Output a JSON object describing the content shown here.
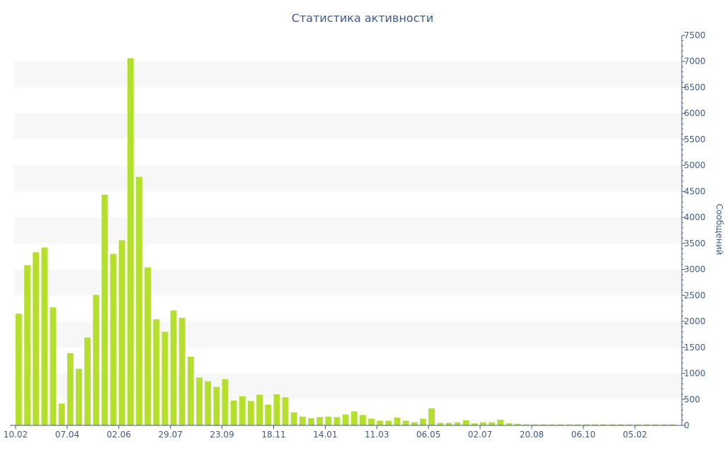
{
  "chart_data": {
    "type": "bar",
    "title": "Статистика активности",
    "xlabel": "",
    "ylabel": "Сообщений",
    "ylim": [
      0,
      7500
    ],
    "yticks": [
      0,
      500,
      1000,
      1500,
      2000,
      2500,
      3000,
      3500,
      4000,
      4500,
      5000,
      5500,
      6000,
      6500,
      7000,
      7500
    ],
    "xtick_labels": [
      {
        "index": 0,
        "label": "10.02"
      },
      {
        "index": 6,
        "label": "07.04"
      },
      {
        "index": 12,
        "label": "02.06"
      },
      {
        "index": 18,
        "label": "29.07"
      },
      {
        "index": 24,
        "label": "23.09"
      },
      {
        "index": 30,
        "label": "18.11"
      },
      {
        "index": 36,
        "label": "14.01"
      },
      {
        "index": 42,
        "label": "11.03"
      },
      {
        "index": 48,
        "label": "06.05"
      },
      {
        "index": 54,
        "label": "02.07"
      },
      {
        "index": 60,
        "label": "20.08"
      },
      {
        "index": 66,
        "label": "06.10"
      },
      {
        "index": 72,
        "label": "05.02"
      }
    ],
    "values": [
      2150,
      3080,
      3330,
      3420,
      2270,
      420,
      1390,
      1090,
      1690,
      2510,
      4440,
      3300,
      3560,
      7060,
      4780,
      3040,
      2040,
      1800,
      2210,
      2070,
      1320,
      920,
      850,
      740,
      890,
      480,
      560,
      470,
      590,
      400,
      600,
      540,
      250,
      170,
      140,
      160,
      170,
      160,
      210,
      270,
      200,
      130,
      90,
      90,
      150,
      90,
      60,
      130,
      330,
      50,
      50,
      60,
      100,
      40,
      60,
      60,
      110,
      40,
      30,
      20,
      20,
      20,
      20,
      20,
      20,
      20,
      20,
      20,
      20,
      20,
      20,
      20,
      20,
      20,
      20,
      20,
      20
    ],
    "bar_color": "#b4e02d",
    "band_color": "#f7f7f7",
    "text_color": "#3e5a8a",
    "axis_color": "#3e5a8a",
    "grid_bands": true,
    "y_axis_position": "right"
  }
}
